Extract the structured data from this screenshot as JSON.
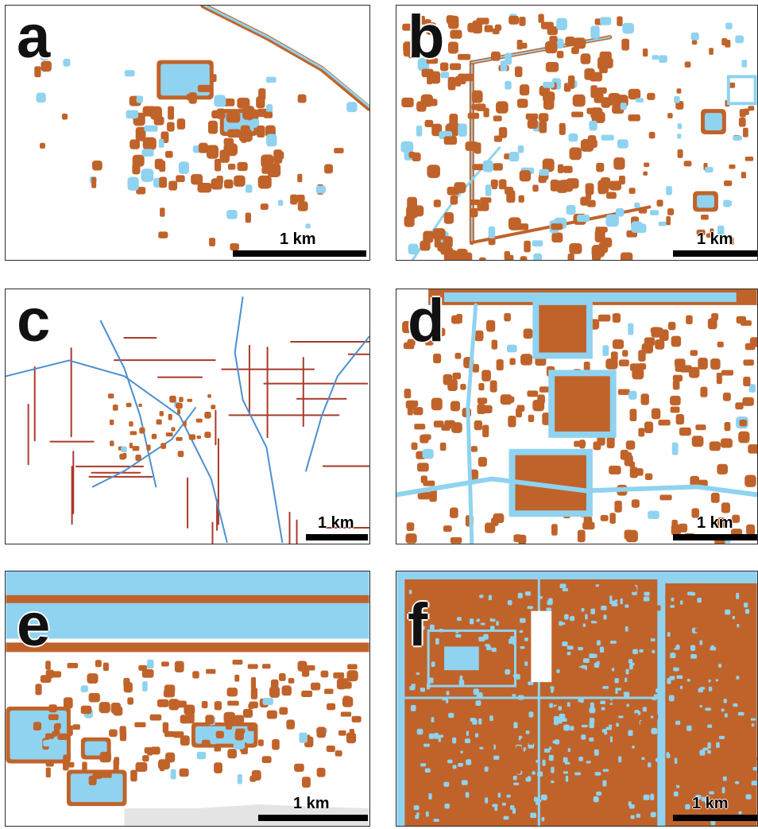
{
  "colors": {
    "settlement": "#c0632a",
    "water": "#8fd3f0",
    "frame": "#2b2b2b",
    "scale": "#000000"
  },
  "panels": [
    {
      "id": "a",
      "letter": "a",
      "scale_label": "1 km"
    },
    {
      "id": "b",
      "letter": "b",
      "scale_label": "1 km"
    },
    {
      "id": "c",
      "letter": "c",
      "scale_label": "1 km"
    },
    {
      "id": "d",
      "letter": "d",
      "scale_label": "1 km"
    },
    {
      "id": "e",
      "letter": "e",
      "scale_label": "1 km"
    },
    {
      "id": "f",
      "letter": "f",
      "scale_label": "1 km"
    }
  ]
}
